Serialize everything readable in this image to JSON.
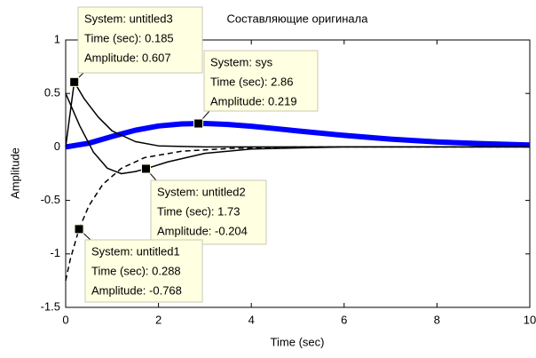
{
  "chart_data": {
    "type": "line",
    "title": "Составляющие оригинала",
    "x_label": "Time (sec)",
    "y_label": "Amplitude",
    "xlim": [
      0,
      10
    ],
    "xticks": [
      0,
      2,
      4,
      6,
      8,
      10
    ],
    "ylim": [
      -1.5,
      1
    ],
    "yticks": [
      -1.5,
      -1,
      -0.5,
      0,
      0.5,
      1
    ],
    "series": [
      {
        "color": "#0000ff",
        "width": 6,
        "dash": "none",
        "x": [
          0,
          0.5,
          1,
          1.5,
          2,
          2.5,
          3,
          3.5,
          4,
          4.5,
          5,
          6,
          7,
          8,
          9,
          10
        ],
        "values": [
          0,
          0.035,
          0.098,
          0.156,
          0.196,
          0.215,
          0.219,
          0.21,
          0.193,
          0.172,
          0.15,
          0.108,
          0.073,
          0.047,
          0.03,
          0.018
        ]
      },
      {
        "color": "#000000",
        "width": 1.5,
        "dash": "6,4",
        "x": [
          0,
          0.1,
          0.288,
          0.5,
          0.8,
          1.2,
          1.7,
          2.5,
          3.5,
          5,
          7,
          10
        ],
        "values": [
          -1.25,
          -1.05,
          -0.768,
          -0.55,
          -0.35,
          -0.2,
          -0.1,
          -0.04,
          -0.015,
          0,
          0,
          0
        ]
      },
      {
        "color": "#000000",
        "width": 1.5,
        "dash": "none",
        "x": [
          0,
          0.3,
          0.6,
          0.9,
          1.2,
          1.5,
          1.73,
          2.2,
          3,
          4,
          6,
          10
        ],
        "values": [
          0.5,
          0.2,
          -0.05,
          -0.2,
          -0.25,
          -0.23,
          -0.204,
          -0.14,
          -0.06,
          -0.02,
          0,
          0
        ]
      },
      {
        "color": "#000000",
        "width": 1.5,
        "dash": "none",
        "x": [
          0,
          0.185,
          0.4,
          0.7,
          1,
          1.5,
          2,
          3,
          4,
          6,
          10
        ],
        "values": [
          0,
          0.607,
          0.45,
          0.28,
          0.15,
          0.05,
          0.01,
          0,
          0,
          0,
          0
        ]
      }
    ],
    "datatips": [
      {
        "system": "System: untitled3",
        "time": "Time (sec): 0.185",
        "amplitude": "Amplitude: 0.607",
        "x": 0.185,
        "y": 0.607
      },
      {
        "system": "System: sys",
        "time": "Time (sec): 2.86",
        "amplitude": "Amplitude: 0.219",
        "x": 2.86,
        "y": 0.219
      },
      {
        "system": "System: untitled2",
        "time": "Time (sec): 1.73",
        "amplitude": "Amplitude: -0.204",
        "x": 1.73,
        "y": -0.204
      },
      {
        "system": "System: untitled1",
        "time": "Time (sec): 0.288",
        "amplitude": "Amplitude: -0.768",
        "x": 0.288,
        "y": -0.768
      }
    ]
  }
}
